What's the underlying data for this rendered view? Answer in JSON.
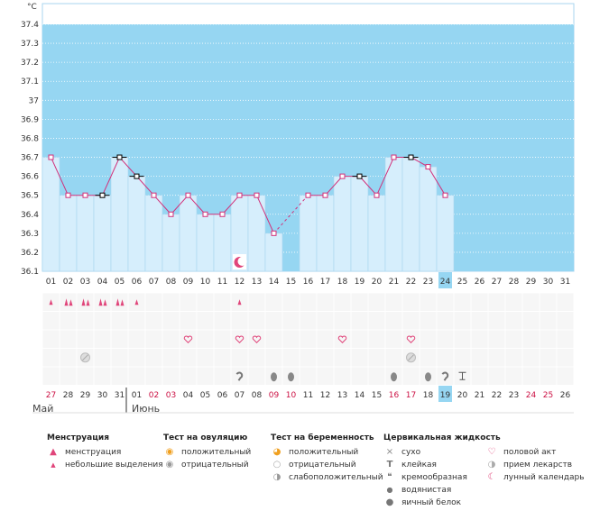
{
  "chart_data": {
    "type": "line",
    "yunit": "°C",
    "ylim": [
      36.1,
      37.4
    ],
    "yticks": [
      "37.4",
      "37.3",
      "37.2",
      "37.1",
      "37",
      "36.9",
      "36.8",
      "36.7",
      "36.6",
      "36.5",
      "36.4",
      "36.3",
      "36.2",
      "36.1"
    ],
    "grid": true,
    "x": [
      "01",
      "02",
      "03",
      "04",
      "05",
      "06",
      "07",
      "08",
      "09",
      "10",
      "11",
      "12",
      "13",
      "14",
      "15",
      "16",
      "17",
      "18",
      "19",
      "20",
      "21",
      "22",
      "23",
      "24",
      "25",
      "26",
      "27",
      "28",
      "29",
      "30",
      "31"
    ],
    "today": "24",
    "temperatures": [
      36.7,
      36.5,
      36.5,
      36.5,
      36.7,
      36.6,
      36.5,
      36.4,
      36.5,
      36.4,
      36.4,
      36.5,
      36.5,
      36.3,
      null,
      36.5,
      36.5,
      36.6,
      36.6,
      36.5,
      36.7,
      36.7,
      36.65,
      36.5
    ],
    "cycle_days": [
      "27",
      "28",
      "29",
      "30",
      "31",
      "01",
      "02",
      "03",
      "04",
      "05",
      "06",
      "07",
      "08",
      "09",
      "10",
      "11",
      "12",
      "13",
      "14",
      "15",
      "16",
      "17",
      "18",
      "19",
      "20",
      "21",
      "22",
      "23",
      "24",
      "25",
      "26"
    ],
    "cycle_red_indices": [
      0,
      6,
      7,
      13,
      14,
      20,
      21,
      28,
      29
    ],
    "cycle_today_index": 23,
    "months": [
      "Май",
      "Июнь"
    ],
    "rows": {
      "menstruation_heavy": [
        1,
        2,
        3,
        4
      ],
      "menstruation_light": [
        0,
        5,
        11
      ],
      "intercourse": [
        8,
        11,
        12,
        17,
        21
      ],
      "medication": [
        2,
        21
      ],
      "cervical_creamy": [
        11,
        23
      ],
      "cervical_egg_white": [
        13,
        14,
        20,
        22
      ],
      "cervical_sticky": [
        24
      ],
      "lunar": [
        11
      ]
    }
  },
  "legend": {
    "menstruation": {
      "title": "Менструация",
      "items": [
        "менструация",
        "небольшие выделения"
      ]
    },
    "ovulation": {
      "title": "Тест на овуляцию",
      "items": [
        "положительный",
        "отрицательный"
      ]
    },
    "pregnancy": {
      "title": "Тест на беременность",
      "items": [
        "положительный",
        "отрицательный",
        "слабоположительный"
      ]
    },
    "cervical": {
      "title": "Цервикальная жидкость",
      "items": [
        "сухо",
        "клейкая",
        "кремообразная",
        "водянистая",
        "яичный белок"
      ]
    },
    "other": {
      "items": [
        "половой акт",
        "прием лекарств",
        "лунный календарь"
      ]
    }
  },
  "colors": {
    "sky": "#96d6f2",
    "bar": "#d6eefc",
    "bar_border": "#a8d6ef",
    "line": "#d2307a",
    "today": "#96d6f2",
    "red_text": "#cc1144"
  }
}
